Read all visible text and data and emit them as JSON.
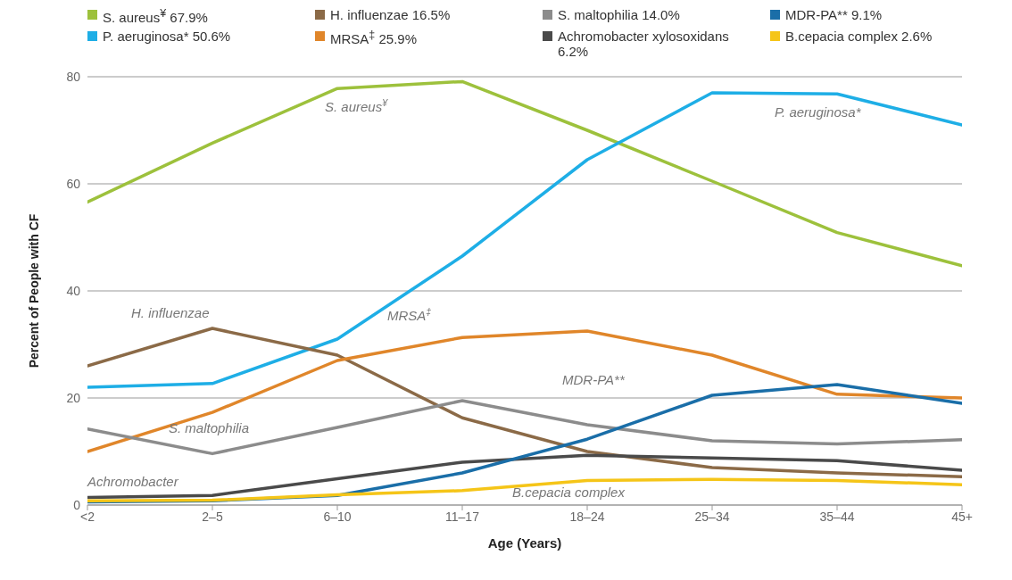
{
  "chart_data": {
    "type": "line",
    "xlabel": "Age (Years)",
    "ylabel": "Percent of People with CF",
    "categories": [
      "<2",
      "2–5",
      "6–10",
      "11–17",
      "18–24",
      "25–34",
      "35–44",
      "45+"
    ],
    "ylim": [
      0,
      80
    ],
    "yticks": [
      0,
      20,
      40,
      60,
      80
    ],
    "grid": "y",
    "legend": "top",
    "marker": "none",
    "line_style": "solid",
    "series": [
      {
        "name": "S. aureus$^{¥}$ 67.9%",
        "color": "#9dc13c",
        "values": [
          56.6,
          67.6,
          77.8,
          79.1,
          70,
          60.5,
          50.9,
          44.7
        ]
      },
      {
        "name": "P. aeruginosa* 50.6%",
        "color": "#1eaee6",
        "values": [
          22,
          22.7,
          31,
          46.5,
          64.5,
          77,
          76.8,
          71
        ]
      },
      {
        "name": "H. influenzae 16.5%",
        "color": "#8b6a47",
        "values": [
          26,
          33,
          28,
          16.3,
          10,
          7,
          6,
          5.3
        ]
      },
      {
        "name": "MRSA$^{‡}$ 25.9%",
        "color": "#e0862a",
        "values": [
          10,
          17.3,
          27,
          31.3,
          32.5,
          28,
          20.7,
          20
        ]
      },
      {
        "name": "S. maltophilia 14.0%",
        "color": "#8c8c8c",
        "values": [
          14.2,
          9.6,
          14.5,
          19.5,
          15,
          12,
          11.4,
          12.2
        ]
      },
      {
        "name": "Achromobacter xylosoxidans 6.2%",
        "color": "#4a4a4a",
        "values": [
          1.4,
          1.8,
          4.9,
          8,
          9.3,
          8.8,
          8.3,
          6.5
        ]
      },
      {
        "name": "MDR-PA** 9.1%",
        "color": "#1a6ea8",
        "values": [
          0.6,
          0.8,
          1.8,
          6,
          12.3,
          20.5,
          22.5,
          19
        ]
      },
      {
        "name": "B.cepacia complex 2.6%",
        "color": "#f5c518",
        "values": [
          0.8,
          0.9,
          1.9,
          2.7,
          4.6,
          4.8,
          4.6,
          3.8
        ]
      }
    ],
    "annotations": [
      "S. aureus$^{¥}$",
      "P. aeruginosa*",
      "H. influenzae",
      "MRSA$^{‡}$",
      "MDR-PA**",
      "S. maltophilia",
      "Achromobacter",
      "B.cepacia complex"
    ]
  }
}
